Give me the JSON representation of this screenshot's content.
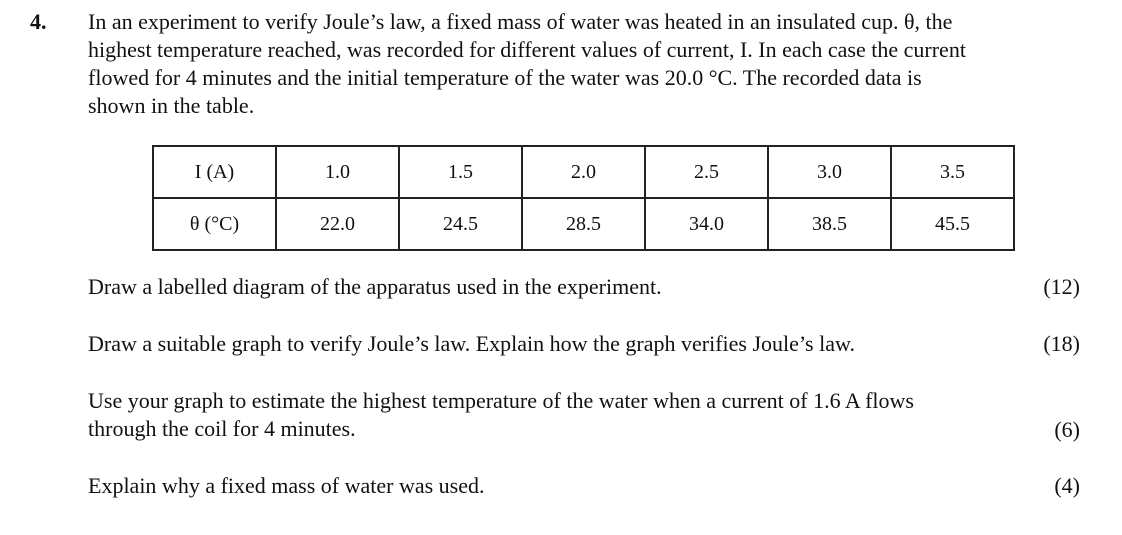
{
  "question": {
    "number": "4.",
    "intro_lines": [
      "In an experiment to verify Joule’s law, a fixed mass of water was heated in an insulated cup. θ, the",
      "highest temperature reached, was recorded for different values of current, I. In each case the current",
      "flowed for 4 minutes and the initial temperature of the water was 20.0 °C. The recorded data is",
      "shown in the table."
    ]
  },
  "table": {
    "row1_header": "I (A)",
    "row1_values": [
      "1.0",
      "1.5",
      "2.0",
      "2.5",
      "3.0",
      "3.5"
    ],
    "row2_header": "θ (°C)",
    "row2_values": [
      "22.0",
      "24.5",
      "28.5",
      "34.0",
      "38.5",
      "45.5"
    ]
  },
  "parts": [
    {
      "lines": [
        "Draw a labelled diagram of the apparatus used in the experiment."
      ],
      "marks": "(12)"
    },
    {
      "lines": [
        "Draw a suitable graph to verify Joule’s law. Explain how the graph verifies Joule’s law."
      ],
      "marks": "(18)"
    },
    {
      "lines": [
        "Use your graph to estimate the highest temperature of the water when a current of 1.6 A flows",
        "through the coil for 4 minutes."
      ],
      "marks": "(6)"
    },
    {
      "lines": [
        "Explain why a fixed mass of water was used."
      ],
      "marks": "(4)"
    }
  ]
}
